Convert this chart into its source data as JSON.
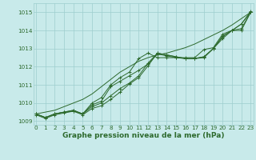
{
  "x": [
    0,
    1,
    2,
    3,
    4,
    5,
    6,
    7,
    8,
    9,
    10,
    11,
    12,
    13,
    14,
    15,
    16,
    17,
    18,
    19,
    20,
    21,
    22,
    23
  ],
  "series": [
    [
      1009.4,
      1009.2,
      1009.4,
      1009.5,
      1009.6,
      1009.4,
      1009.8,
      1010.0,
      1010.4,
      1010.8,
      1011.1,
      1011.5,
      1012.2,
      1012.75,
      1012.65,
      1012.55,
      1012.45,
      1012.45,
      1012.55,
      1013.0,
      1013.7,
      1014.0,
      1014.35,
      1015.0
    ],
    [
      1009.4,
      1009.2,
      1009.4,
      1009.5,
      1009.55,
      1009.4,
      1009.9,
      1010.1,
      1010.9,
      1011.2,
      1011.5,
      1011.8,
      1012.15,
      1012.7,
      1012.6,
      1012.5,
      1012.45,
      1012.45,
      1012.5,
      1013.0,
      1013.55,
      1014.0,
      1014.1,
      1015.0
    ],
    [
      1009.4,
      1009.2,
      1009.4,
      1009.5,
      1009.6,
      1009.4,
      1010.0,
      1010.3,
      1011.0,
      1011.4,
      1011.7,
      1012.45,
      1012.75,
      1012.5,
      1012.5,
      1012.5,
      1012.5,
      1012.5,
      1012.95,
      1013.05,
      1013.8,
      1014.0,
      1014.0,
      1015.0
    ],
    [
      1009.35,
      1009.15,
      1009.35,
      1009.45,
      1009.55,
      1009.35,
      1009.7,
      1009.85,
      1010.2,
      1010.6,
      1011.05,
      1011.4,
      1012.05,
      1012.75,
      1012.65,
      1012.55,
      1012.45,
      1012.45,
      1012.55,
      1013.0,
      1013.65,
      1014.0,
      1014.35,
      1015.05
    ]
  ],
  "smooth_series": [
    1009.4,
    1009.5,
    1009.6,
    1009.8,
    1010.0,
    1010.2,
    1010.5,
    1010.9,
    1011.3,
    1011.7,
    1012.0,
    1012.3,
    1012.5,
    1012.65,
    1012.75,
    1012.9,
    1013.05,
    1013.25,
    1013.5,
    1013.75,
    1014.0,
    1014.3,
    1014.65,
    1015.0
  ],
  "line_color": "#2d6a2d",
  "marker": "+",
  "bg_color": "#c8eaea",
  "grid_color": "#9ecece",
  "ylim": [
    1008.8,
    1015.5
  ],
  "yticks": [
    1009,
    1010,
    1011,
    1012,
    1013,
    1014,
    1015
  ],
  "xlabel": "Graphe pression niveau de la mer (hPa)",
  "tick_color": "#2d6a2d",
  "xlabel_fontsize": 6.5,
  "tick_fontsize": 5.2,
  "linewidth": 0.7,
  "markersize": 3.0
}
